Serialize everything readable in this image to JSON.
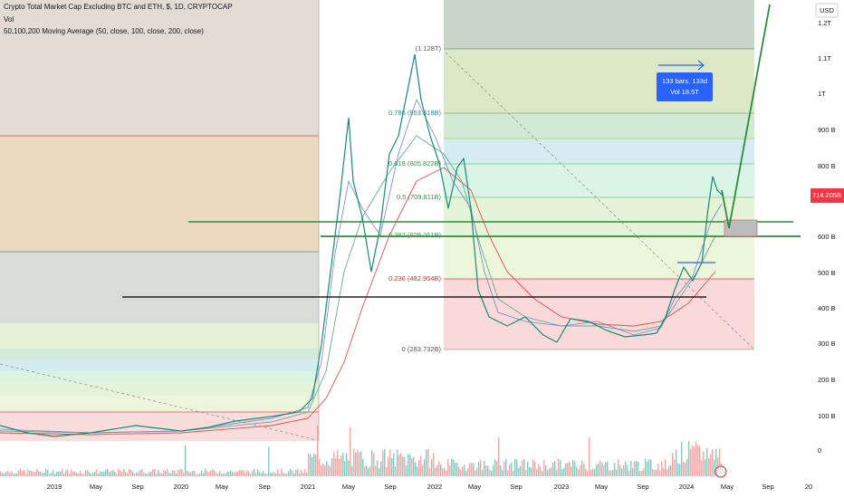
{
  "header": {
    "title": "Crypto Total Market Cap Excluding BTC and ETH, $, 1D, CRYPTOCAP",
    "vol": "Vol",
    "indicator": "50,100,200 Moving Average (50, close, 100, close, 200, close)"
  },
  "price_axis": {
    "unit": "USD",
    "labels": [
      "1.2T",
      "1.1T",
      "1T",
      "900 B",
      "800 B",
      "600 B",
      "500 B",
      "400 B",
      "300 B",
      "200 B",
      "100 B",
      "0"
    ],
    "last_price": "714.205B"
  },
  "time_axis": {
    "labels": [
      "2019",
      "May",
      "Sep",
      "2020",
      "May",
      "Sep",
      "2021",
      "May",
      "Sep",
      "2022",
      "May",
      "Sep",
      "2023",
      "May",
      "Sep",
      "2024",
      "May",
      "Sep",
      "20"
    ]
  },
  "fib_levels": [
    "(1.128T)",
    "0.786 (953.318B)",
    "0.618 (805.822B)",
    "0.5 (709.811B)",
    "0.382 (609.261B)",
    "0.236 (482.954B)",
    "0 (283.732B)"
  ],
  "measure": {
    "line1": "133 bars, 133d",
    "line2": "Vol 18.5T"
  }
}
